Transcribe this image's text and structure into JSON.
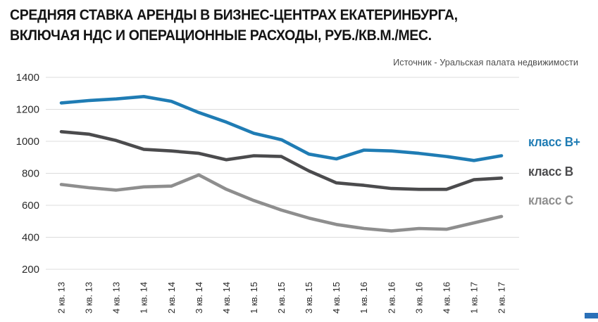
{
  "title_lines": [
    "СРЕДНЯЯ СТАВКА АРЕНДЫ В БИЗНЕС-ЦЕНТРАХ ЕКАТЕРИНБУРГА,",
    "ВКЛЮЧАЯ НДС И ОПЕРАЦИОННЫЕ РАСХОДЫ, РУБ./КВ.М./МЕС."
  ],
  "source_label": "Источник  - Уральская палата недвижимости",
  "colors": {
    "class_b_plus": "#1f7cb4",
    "class_b": "#4b4b4d",
    "class_c": "#8e8e8e",
    "gridline": "#dcdcdc",
    "title_text": "#141414",
    "source_text": "#4d4d4d",
    "corner_mark": "#2a70b8"
  },
  "chart_data": {
    "type": "line",
    "categories": [
      "2 кв. 13",
      "3 кв. 13",
      "4 кв. 13",
      "1 кв. 14",
      "2 кв. 14",
      "3 кв. 14",
      "4 кв. 14",
      "1 кв. 15",
      "2 кв. 15",
      "3 кв. 15",
      "4 кв. 15",
      "1 кв. 16",
      "2 кв. 16",
      "3 кв. 16",
      "4 кв. 16",
      "1 кв. 17",
      "2 кв. 17"
    ],
    "series": [
      {
        "name": "класс В+",
        "color": "#1f7cb4",
        "values": [
          1240,
          1255,
          1265,
          1280,
          1250,
          1180,
          1120,
          1050,
          1010,
          920,
          890,
          945,
          940,
          925,
          905,
          880,
          910
        ]
      },
      {
        "name": "класс В",
        "color": "#4b4b4d",
        "values": [
          1060,
          1045,
          1005,
          950,
          940,
          925,
          885,
          910,
          905,
          815,
          740,
          725,
          705,
          700,
          700,
          760,
          770
        ]
      },
      {
        "name": "класс С",
        "color": "#8e8e8e",
        "values": [
          730,
          710,
          695,
          715,
          720,
          790,
          700,
          630,
          570,
          520,
          480,
          455,
          440,
          455,
          450,
          490,
          530
        ]
      }
    ],
    "title": "Средняя ставка аренды в бизнес-центрах Екатеринбурга, включая НДС и операционные расходы, руб./кв.м./мес.",
    "xlabel": "",
    "ylabel": "",
    "ylim": [
      200,
      1400
    ],
    "yticks": [
      1400,
      1200,
      1000,
      800,
      600,
      400,
      200
    ],
    "grid": true,
    "legend_position": "right"
  }
}
